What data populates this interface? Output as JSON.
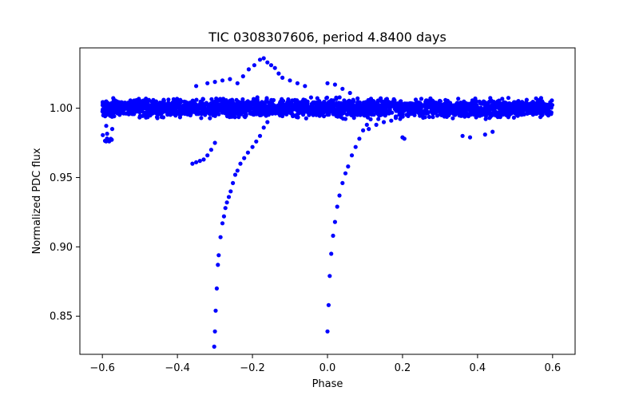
{
  "chart_data": {
    "type": "scatter",
    "title": "TIC 0308307606, period 4.8400 days",
    "xlabel": "Phase",
    "ylabel": "Normalized PDC flux",
    "xlim": [
      -0.66,
      0.66
    ],
    "ylim": [
      0.8225,
      1.0435
    ],
    "x_ticks": [
      -0.6,
      -0.4,
      -0.2,
      0.0,
      0.2,
      0.4,
      0.6
    ],
    "x_tick_labels": [
      "−0.6",
      "−0.4",
      "−0.2",
      "0.0",
      "0.2",
      "0.4",
      "0.6"
    ],
    "y_ticks": [
      0.85,
      0.9,
      0.95,
      1.0
    ],
    "y_tick_labels": [
      "0.85",
      "0.90",
      "0.95",
      "1.00"
    ],
    "grid": false,
    "legend": "none",
    "marker_color": "#0000ff",
    "series": [
      {
        "baseline_band": {
          "x_range": [
            -0.6,
            0.6
          ],
          "y_center": 1.0,
          "y_spread": 0.009,
          "y_outliers": [
            0.976,
            1.016
          ]
        },
        "points": [
          [
            -0.302,
            0.828
          ],
          [
            -0.3,
            0.839
          ],
          [
            -0.298,
            0.854
          ],
          [
            -0.295,
            0.87
          ],
          [
            -0.292,
            0.887
          ],
          [
            -0.29,
            0.894
          ],
          [
            -0.285,
            0.907
          ],
          [
            -0.28,
            0.917
          ],
          [
            -0.276,
            0.922
          ],
          [
            -0.272,
            0.928
          ],
          [
            -0.268,
            0.932
          ],
          [
            -0.263,
            0.936
          ],
          [
            -0.258,
            0.94
          ],
          [
            -0.252,
            0.946
          ],
          [
            -0.246,
            0.952
          ],
          [
            -0.24,
            0.955
          ],
          [
            -0.232,
            0.96
          ],
          [
            -0.222,
            0.964
          ],
          [
            -0.212,
            0.968
          ],
          [
            -0.2,
            0.972
          ],
          [
            -0.19,
            0.976
          ],
          [
            -0.18,
            0.98
          ],
          [
            -0.17,
            0.986
          ],
          [
            -0.16,
            0.99
          ],
          [
            -0.36,
            0.96
          ],
          [
            -0.35,
            0.961
          ],
          [
            -0.34,
            0.962
          ],
          [
            -0.33,
            0.963
          ],
          [
            -0.32,
            0.966
          ],
          [
            -0.31,
            0.97
          ],
          [
            -0.3,
            0.975
          ],
          [
            -0.24,
            1.018
          ],
          [
            -0.225,
            1.023
          ],
          [
            -0.21,
            1.028
          ],
          [
            -0.195,
            1.031
          ],
          [
            -0.18,
            1.035
          ],
          [
            -0.17,
            1.036
          ],
          [
            -0.16,
            1.033
          ],
          [
            -0.15,
            1.031
          ],
          [
            -0.14,
            1.029
          ],
          [
            -0.13,
            1.025
          ],
          [
            -0.12,
            1.022
          ],
          [
            -0.1,
            1.02
          ],
          [
            -0.08,
            1.018
          ],
          [
            -0.06,
            1.016
          ],
          [
            -0.28,
            1.02
          ],
          [
            -0.26,
            1.021
          ],
          [
            -0.3,
            1.019
          ],
          [
            -0.32,
            1.018
          ],
          [
            -0.35,
            1.016
          ],
          [
            0.0,
            0.839
          ],
          [
            0.003,
            0.858
          ],
          [
            0.006,
            0.879
          ],
          [
            0.01,
            0.895
          ],
          [
            0.015,
            0.908
          ],
          [
            0.02,
            0.918
          ],
          [
            0.026,
            0.929
          ],
          [
            0.032,
            0.937
          ],
          [
            0.04,
            0.946
          ],
          [
            0.048,
            0.953
          ],
          [
            0.055,
            0.958
          ],
          [
            0.065,
            0.966
          ],
          [
            0.075,
            0.972
          ],
          [
            0.085,
            0.978
          ],
          [
            0.095,
            0.984
          ],
          [
            0.105,
            0.988
          ],
          [
            0.115,
            0.992
          ],
          [
            0.0,
            1.018
          ],
          [
            0.02,
            1.017
          ],
          [
            0.04,
            1.014
          ],
          [
            0.06,
            1.011
          ],
          [
            0.2,
            0.979
          ],
          [
            0.205,
            0.978
          ],
          [
            0.36,
            0.98
          ],
          [
            0.38,
            0.979
          ],
          [
            0.42,
            0.981
          ],
          [
            0.44,
            0.983
          ],
          [
            0.11,
            0.985
          ],
          [
            0.13,
            0.988
          ],
          [
            0.15,
            0.99
          ],
          [
            0.17,
            0.991
          ]
        ]
      }
    ]
  }
}
